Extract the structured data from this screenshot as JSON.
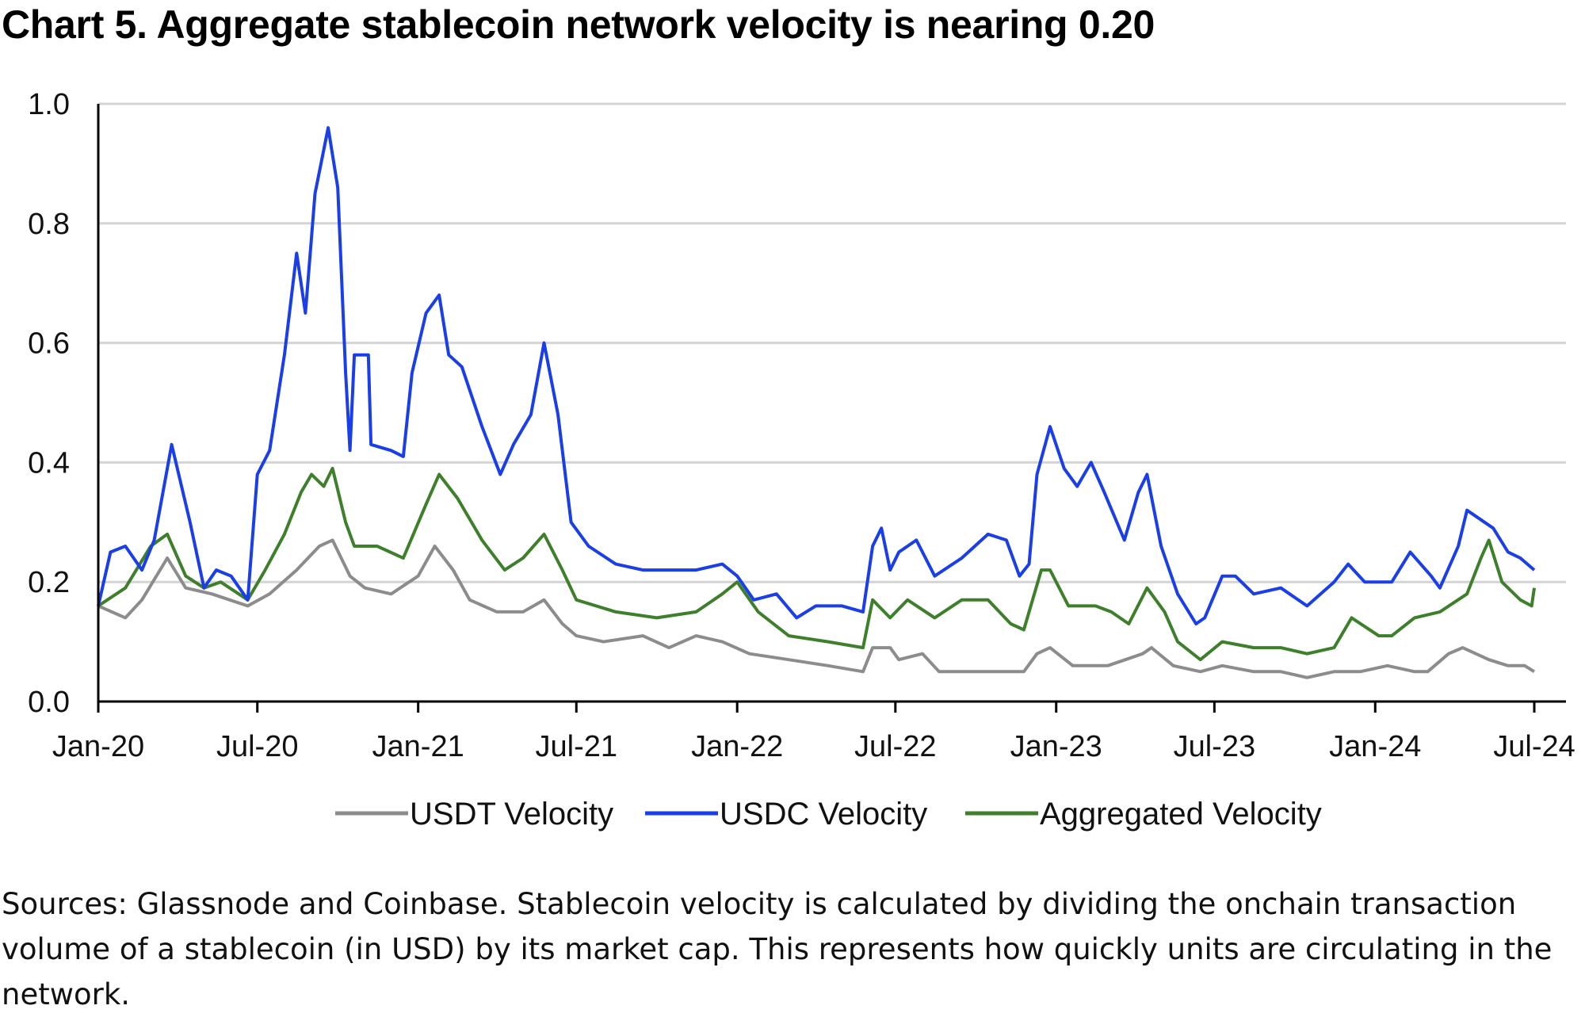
{
  "title": "Chart 5. Aggregate stablecoin network velocity is nearing 0.20",
  "source_note": "Sources: Glassnode and Coinbase. Stablecoin velocity is calculated by dividing the onchain transaction volume of a stablecoin (in USD) by its market cap. This represents how quickly units are circulating in the network.",
  "chart_data": {
    "type": "line",
    "title": "Chart 5. Aggregate stablecoin network velocity is nearing 0.20",
    "xlabel": "",
    "ylabel": "",
    "xlim": [
      "2020-01-01",
      "2024-07-01"
    ],
    "ylim": [
      0,
      1.0
    ],
    "grid": "horizontal",
    "legend": "bottom",
    "x_ticks": [
      {
        "date": "2020-01-01",
        "label": "Jan-20"
      },
      {
        "date": "2020-07-01",
        "label": "Jul-20"
      },
      {
        "date": "2021-01-01",
        "label": "Jan-21"
      },
      {
        "date": "2021-07-01",
        "label": "Jul-21"
      },
      {
        "date": "2022-01-01",
        "label": "Jan-22"
      },
      {
        "date": "2022-07-01",
        "label": "Jul-22"
      },
      {
        "date": "2023-01-01",
        "label": "Jan-23"
      },
      {
        "date": "2023-07-01",
        "label": "Jul-23"
      },
      {
        "date": "2024-01-01",
        "label": "Jan-24"
      },
      {
        "date": "2024-07-01",
        "label": "Jul-24"
      }
    ],
    "y_ticks": [
      {
        "value": 0.0,
        "label": "0.0"
      },
      {
        "value": 0.2,
        "label": "0.2"
      },
      {
        "value": 0.4,
        "label": "0.4"
      },
      {
        "value": 0.6,
        "label": "0.6"
      },
      {
        "value": 0.8,
        "label": "0.8"
      },
      {
        "value": 1.0,
        "label": "1.0"
      }
    ],
    "series": [
      {
        "name": "USDT Velocity",
        "color": "#8c8c8c",
        "points": [
          [
            "2020-01-01",
            0.16
          ],
          [
            "2020-02-01",
            0.14
          ],
          [
            "2020-02-20",
            0.17
          ],
          [
            "2020-03-20",
            0.24
          ],
          [
            "2020-04-10",
            0.19
          ],
          [
            "2020-05-10",
            0.18
          ],
          [
            "2020-06-20",
            0.16
          ],
          [
            "2020-07-15",
            0.18
          ],
          [
            "2020-08-15",
            0.22
          ],
          [
            "2020-09-10",
            0.26
          ],
          [
            "2020-09-25",
            0.27
          ],
          [
            "2020-10-15",
            0.21
          ],
          [
            "2020-11-01",
            0.19
          ],
          [
            "2020-12-01",
            0.18
          ],
          [
            "2021-01-01",
            0.21
          ],
          [
            "2021-01-20",
            0.26
          ],
          [
            "2021-02-10",
            0.22
          ],
          [
            "2021-03-01",
            0.17
          ],
          [
            "2021-04-01",
            0.15
          ],
          [
            "2021-05-01",
            0.15
          ],
          [
            "2021-05-25",
            0.17
          ],
          [
            "2021-06-15",
            0.13
          ],
          [
            "2021-07-01",
            0.11
          ],
          [
            "2021-08-01",
            0.1
          ],
          [
            "2021-09-15",
            0.11
          ],
          [
            "2021-10-15",
            0.09
          ],
          [
            "2021-11-15",
            0.11
          ],
          [
            "2021-12-15",
            0.1
          ],
          [
            "2022-01-15",
            0.08
          ],
          [
            "2022-03-01",
            0.07
          ],
          [
            "2022-04-15",
            0.06
          ],
          [
            "2022-05-25",
            0.05
          ],
          [
            "2022-06-05",
            0.09
          ],
          [
            "2022-06-25",
            0.09
          ],
          [
            "2022-07-05",
            0.07
          ],
          [
            "2022-08-01",
            0.08
          ],
          [
            "2022-08-20",
            0.05
          ],
          [
            "2022-10-01",
            0.05
          ],
          [
            "2022-11-25",
            0.05
          ],
          [
            "2022-12-10",
            0.08
          ],
          [
            "2022-12-25",
            0.09
          ],
          [
            "2023-01-20",
            0.06
          ],
          [
            "2023-03-01",
            0.06
          ],
          [
            "2023-04-10",
            0.08
          ],
          [
            "2023-04-20",
            0.09
          ],
          [
            "2023-05-15",
            0.06
          ],
          [
            "2023-06-15",
            0.05
          ],
          [
            "2023-07-10",
            0.06
          ],
          [
            "2023-08-15",
            0.05
          ],
          [
            "2023-09-15",
            0.05
          ],
          [
            "2023-10-15",
            0.04
          ],
          [
            "2023-11-15",
            0.05
          ],
          [
            "2023-12-15",
            0.05
          ],
          [
            "2024-01-15",
            0.06
          ],
          [
            "2024-02-15",
            0.05
          ],
          [
            "2024-03-01",
            0.05
          ],
          [
            "2024-03-25",
            0.08
          ],
          [
            "2024-04-10",
            0.09
          ],
          [
            "2024-05-10",
            0.07
          ],
          [
            "2024-06-01",
            0.06
          ],
          [
            "2024-06-20",
            0.06
          ],
          [
            "2024-07-01",
            0.05
          ]
        ]
      },
      {
        "name": "USDC Velocity",
        "color": "#1a3ee8",
        "points": [
          [
            "2020-01-01",
            0.16
          ],
          [
            "2020-01-15",
            0.25
          ],
          [
            "2020-02-01",
            0.26
          ],
          [
            "2020-02-20",
            0.22
          ],
          [
            "2020-03-05",
            0.27
          ],
          [
            "2020-03-25",
            0.43
          ],
          [
            "2020-04-15",
            0.3
          ],
          [
            "2020-05-01",
            0.19
          ],
          [
            "2020-05-15",
            0.22
          ],
          [
            "2020-06-01",
            0.21
          ],
          [
            "2020-06-20",
            0.17
          ],
          [
            "2020-07-01",
            0.38
          ],
          [
            "2020-07-15",
            0.42
          ],
          [
            "2020-08-01",
            0.58
          ],
          [
            "2020-08-15",
            0.75
          ],
          [
            "2020-08-25",
            0.65
          ],
          [
            "2020-09-05",
            0.85
          ],
          [
            "2020-09-20",
            0.96
          ],
          [
            "2020-10-01",
            0.86
          ],
          [
            "2020-10-10",
            0.55
          ],
          [
            "2020-10-15",
            0.42
          ],
          [
            "2020-10-20",
            0.58
          ],
          [
            "2020-11-05",
            0.58
          ],
          [
            "2020-11-08",
            0.43
          ],
          [
            "2020-12-01",
            0.42
          ],
          [
            "2020-12-15",
            0.41
          ],
          [
            "2020-12-25",
            0.55
          ],
          [
            "2021-01-10",
            0.65
          ],
          [
            "2021-01-25",
            0.68
          ],
          [
            "2021-02-05",
            0.58
          ],
          [
            "2021-02-20",
            0.56
          ],
          [
            "2021-03-15",
            0.46
          ],
          [
            "2021-04-05",
            0.38
          ],
          [
            "2021-04-20",
            0.43
          ],
          [
            "2021-05-10",
            0.48
          ],
          [
            "2021-05-25",
            0.6
          ],
          [
            "2021-06-10",
            0.48
          ],
          [
            "2021-06-25",
            0.3
          ],
          [
            "2021-07-15",
            0.26
          ],
          [
            "2021-08-15",
            0.23
          ],
          [
            "2021-09-15",
            0.22
          ],
          [
            "2021-10-15",
            0.22
          ],
          [
            "2021-11-15",
            0.22
          ],
          [
            "2021-12-15",
            0.23
          ],
          [
            "2022-01-01",
            0.21
          ],
          [
            "2022-01-20",
            0.17
          ],
          [
            "2022-02-15",
            0.18
          ],
          [
            "2022-03-10",
            0.14
          ],
          [
            "2022-04-01",
            0.16
          ],
          [
            "2022-05-01",
            0.16
          ],
          [
            "2022-05-25",
            0.15
          ],
          [
            "2022-06-05",
            0.26
          ],
          [
            "2022-06-15",
            0.29
          ],
          [
            "2022-06-25",
            0.22
          ],
          [
            "2022-07-05",
            0.25
          ],
          [
            "2022-07-25",
            0.27
          ],
          [
            "2022-08-15",
            0.21
          ],
          [
            "2022-09-15",
            0.24
          ],
          [
            "2022-10-15",
            0.28
          ],
          [
            "2022-11-05",
            0.27
          ],
          [
            "2022-11-20",
            0.21
          ],
          [
            "2022-12-01",
            0.23
          ],
          [
            "2022-12-10",
            0.38
          ],
          [
            "2022-12-25",
            0.46
          ],
          [
            "2023-01-10",
            0.39
          ],
          [
            "2023-01-25",
            0.36
          ],
          [
            "2023-02-10",
            0.4
          ],
          [
            "2023-02-25",
            0.35
          ],
          [
            "2023-03-20",
            0.27
          ],
          [
            "2023-04-05",
            0.35
          ],
          [
            "2023-04-15",
            0.38
          ],
          [
            "2023-05-01",
            0.26
          ],
          [
            "2023-05-20",
            0.18
          ],
          [
            "2023-06-10",
            0.13
          ],
          [
            "2023-06-20",
            0.14
          ],
          [
            "2023-07-10",
            0.21
          ],
          [
            "2023-07-25",
            0.21
          ],
          [
            "2023-08-15",
            0.18
          ],
          [
            "2023-09-15",
            0.19
          ],
          [
            "2023-10-15",
            0.16
          ],
          [
            "2023-11-15",
            0.2
          ],
          [
            "2023-12-01",
            0.23
          ],
          [
            "2023-12-20",
            0.2
          ],
          [
            "2024-01-20",
            0.2
          ],
          [
            "2024-02-10",
            0.25
          ],
          [
            "2024-03-05",
            0.21
          ],
          [
            "2024-03-15",
            0.19
          ],
          [
            "2024-04-05",
            0.26
          ],
          [
            "2024-04-15",
            0.32
          ],
          [
            "2024-05-15",
            0.29
          ],
          [
            "2024-06-01",
            0.25
          ],
          [
            "2024-06-15",
            0.24
          ],
          [
            "2024-07-01",
            0.22
          ]
        ]
      },
      {
        "name": "Aggregated Velocity",
        "color": "#3d7f2a",
        "points": [
          [
            "2020-01-01",
            0.16
          ],
          [
            "2020-02-01",
            0.19
          ],
          [
            "2020-03-01",
            0.26
          ],
          [
            "2020-03-20",
            0.28
          ],
          [
            "2020-04-10",
            0.21
          ],
          [
            "2020-05-01",
            0.19
          ],
          [
            "2020-05-20",
            0.2
          ],
          [
            "2020-06-20",
            0.17
          ],
          [
            "2020-07-10",
            0.22
          ],
          [
            "2020-08-01",
            0.28
          ],
          [
            "2020-08-20",
            0.35
          ],
          [
            "2020-09-01",
            0.38
          ],
          [
            "2020-09-15",
            0.36
          ],
          [
            "2020-09-25",
            0.39
          ],
          [
            "2020-10-10",
            0.3
          ],
          [
            "2020-10-20",
            0.26
          ],
          [
            "2020-11-15",
            0.26
          ],
          [
            "2020-12-15",
            0.24
          ],
          [
            "2021-01-10",
            0.33
          ],
          [
            "2021-01-25",
            0.38
          ],
          [
            "2021-02-15",
            0.34
          ],
          [
            "2021-03-15",
            0.27
          ],
          [
            "2021-04-10",
            0.22
          ],
          [
            "2021-05-01",
            0.24
          ],
          [
            "2021-05-25",
            0.28
          ],
          [
            "2021-06-15",
            0.22
          ],
          [
            "2021-07-01",
            0.17
          ],
          [
            "2021-08-15",
            0.15
          ],
          [
            "2021-10-01",
            0.14
          ],
          [
            "2021-11-15",
            0.15
          ],
          [
            "2021-12-15",
            0.18
          ],
          [
            "2022-01-01",
            0.2
          ],
          [
            "2022-01-25",
            0.15
          ],
          [
            "2022-03-01",
            0.11
          ],
          [
            "2022-04-15",
            0.1
          ],
          [
            "2022-05-25",
            0.09
          ],
          [
            "2022-06-05",
            0.17
          ],
          [
            "2022-06-25",
            0.14
          ],
          [
            "2022-07-15",
            0.17
          ],
          [
            "2022-08-15",
            0.14
          ],
          [
            "2022-09-15",
            0.17
          ],
          [
            "2022-10-15",
            0.17
          ],
          [
            "2022-11-10",
            0.13
          ],
          [
            "2022-11-25",
            0.12
          ],
          [
            "2022-12-15",
            0.22
          ],
          [
            "2022-12-25",
            0.22
          ],
          [
            "2023-01-15",
            0.16
          ],
          [
            "2023-02-15",
            0.16
          ],
          [
            "2023-03-05",
            0.15
          ],
          [
            "2023-03-25",
            0.13
          ],
          [
            "2023-04-15",
            0.19
          ],
          [
            "2023-05-05",
            0.15
          ],
          [
            "2023-05-20",
            0.1
          ],
          [
            "2023-06-15",
            0.07
          ],
          [
            "2023-07-10",
            0.1
          ],
          [
            "2023-08-15",
            0.09
          ],
          [
            "2023-09-15",
            0.09
          ],
          [
            "2023-10-15",
            0.08
          ],
          [
            "2023-11-15",
            0.09
          ],
          [
            "2023-12-05",
            0.14
          ],
          [
            "2024-01-05",
            0.11
          ],
          [
            "2024-01-20",
            0.11
          ],
          [
            "2024-02-15",
            0.14
          ],
          [
            "2024-03-15",
            0.15
          ],
          [
            "2024-04-15",
            0.18
          ],
          [
            "2024-05-01",
            0.24
          ],
          [
            "2024-05-10",
            0.27
          ],
          [
            "2024-05-25",
            0.2
          ],
          [
            "2024-06-15",
            0.17
          ],
          [
            "2024-06-28",
            0.16
          ],
          [
            "2024-07-01",
            0.19
          ]
        ]
      }
    ]
  }
}
